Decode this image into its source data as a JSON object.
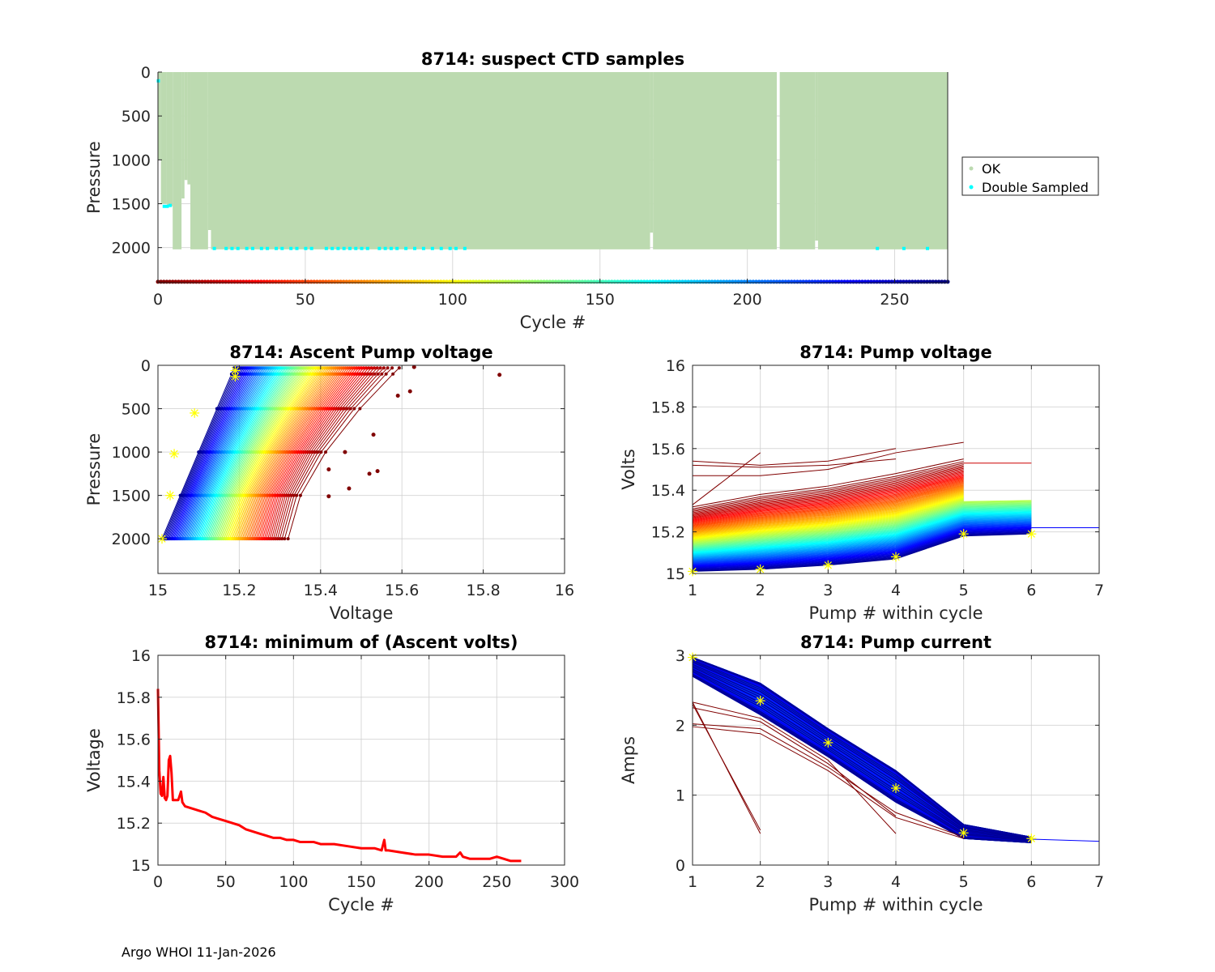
{
  "footer": "Argo WHOI 11-Jan-2026",
  "chart_data": [
    {
      "id": "suspect",
      "type": "scatter",
      "title": "8714: suspect CTD samples",
      "xlabel": "Cycle #",
      "ylabel": "Pressure",
      "xlim": [
        0,
        268
      ],
      "ylim": [
        0,
        2400
      ],
      "y_reversed": true,
      "xticks": [
        0,
        50,
        100,
        150,
        200,
        250
      ],
      "yticks": [
        0,
        500,
        1000,
        1500,
        2000
      ],
      "grid": true,
      "legend": {
        "placement": "outside-right",
        "entries": [
          {
            "label": "OK",
            "color": "#bcdab0"
          },
          {
            "label": "Double Sampled",
            "color": "#00ffff"
          }
        ]
      },
      "ok_region_color": "#bcdab0",
      "ok_profiles": [
        {
          "from": 0,
          "to": 1,
          "max_pressure": 1000
        },
        {
          "from": 1,
          "to": 3,
          "max_pressure": 1500
        },
        {
          "from": 3,
          "to": 5,
          "max_pressure": 1530
        },
        {
          "from": 5,
          "to": 8,
          "max_pressure": 2020
        },
        {
          "from": 8,
          "to": 9,
          "max_pressure": 1440
        },
        {
          "from": 9,
          "to": 10,
          "max_pressure": 1230
        },
        {
          "from": 10,
          "to": 11,
          "max_pressure": 1280
        },
        {
          "from": 11,
          "to": 17,
          "max_pressure": 2020
        },
        {
          "from": 17,
          "to": 18,
          "max_pressure": 1800
        },
        {
          "from": 18,
          "to": 167,
          "max_pressure": 2020
        },
        {
          "from": 167,
          "to": 168,
          "max_pressure": 1830
        },
        {
          "from": 168,
          "to": 210,
          "max_pressure": 2020
        },
        {
          "from": 211,
          "to": 223,
          "max_pressure": 2020
        },
        {
          "from": 223,
          "to": 224,
          "max_pressure": 1920
        },
        {
          "from": 224,
          "to": 268,
          "max_pressure": 2020
        }
      ],
      "double_sampled": [
        [
          0,
          100
        ],
        [
          2,
          1530
        ],
        [
          3,
          1530
        ],
        [
          4,
          1520
        ],
        [
          19,
          2010
        ],
        [
          23,
          2010
        ],
        [
          25,
          2010
        ],
        [
          27,
          2010
        ],
        [
          30,
          2010
        ],
        [
          32,
          2010
        ],
        [
          35,
          2010
        ],
        [
          37,
          2010
        ],
        [
          40,
          2010
        ],
        [
          42,
          2010
        ],
        [
          45,
          2010
        ],
        [
          47,
          2010
        ],
        [
          50,
          2010
        ],
        [
          52,
          2010
        ],
        [
          57,
          2010
        ],
        [
          59,
          2010
        ],
        [
          61,
          2010
        ],
        [
          63,
          2010
        ],
        [
          65,
          2010
        ],
        [
          67,
          2010
        ],
        [
          69,
          2010
        ],
        [
          71,
          2010
        ],
        [
          75,
          2010
        ],
        [
          77,
          2010
        ],
        [
          79,
          2010
        ],
        [
          81,
          2010
        ],
        [
          84,
          2010
        ],
        [
          87,
          2010
        ],
        [
          90,
          2010
        ],
        [
          93,
          2010
        ],
        [
          96,
          2010
        ],
        [
          99,
          2010
        ],
        [
          101,
          2010
        ],
        [
          104,
          2010
        ],
        [
          244,
          2010
        ],
        [
          253,
          2010
        ],
        [
          261,
          2010
        ]
      ],
      "cycle_colorbar": {
        "from": 0,
        "to": 268,
        "colormap": "jet-reversed",
        "at_pressure": 2390
      }
    },
    {
      "id": "ascent",
      "type": "line",
      "title": "8714: Ascent Pump voltage",
      "xlabel": "Voltage",
      "ylabel": "Pressure",
      "xlim": [
        15,
        16
      ],
      "ylim": [
        0,
        2400
      ],
      "y_reversed": true,
      "xticks": [
        15,
        15.2,
        15.4,
        15.6,
        15.8,
        16
      ],
      "yticks": [
        0,
        500,
        1000,
        1500,
        2000
      ],
      "grid": true,
      "description": "One line per cycle, colored by cycle (jet colormap, dark red = early, dark blue = late). Voltage rises as pressure decreases.",
      "series_envelope": {
        "late_cycle_at_2000": 15.01,
        "late_cycle_at_0": 15.19,
        "early_cycle_at_2000": 15.32,
        "early_cycle_at_0": 15.6
      },
      "outlier_points": [
        [
          15.84,
          110
        ],
        [
          15.63,
          20
        ],
        [
          15.62,
          300
        ],
        [
          15.59,
          350
        ],
        [
          15.53,
          800
        ],
        [
          15.52,
          1250
        ],
        [
          15.54,
          1220
        ],
        [
          15.47,
          1420
        ],
        [
          15.42,
          1510
        ],
        [
          15.42,
          1200
        ],
        [
          15.46,
          1000
        ]
      ],
      "latest_cycle_markers": [
        [
          15.19,
          60
        ],
        [
          15.19,
          130
        ],
        [
          15.09,
          550
        ],
        [
          15.04,
          1020
        ],
        [
          15.03,
          1500
        ],
        [
          15.01,
          2000
        ]
      ],
      "marker_color": "#ffff00"
    },
    {
      "id": "pumpvolt",
      "type": "line",
      "title": "8714: Pump voltage",
      "xlabel": "Pump # within cycle",
      "ylabel": "Volts",
      "xlim": [
        1,
        7
      ],
      "ylim": [
        15,
        16
      ],
      "xticks": [
        1,
        2,
        3,
        4,
        5,
        6,
        7
      ],
      "yticks": [
        15,
        15.2,
        15.4,
        15.6,
        15.8,
        16
      ],
      "grid": true,
      "description": "One line per cycle colored by cycle (jet colormap). Early cycles higher voltage.",
      "series_envelope": {
        "early": [
          15.32,
          15.38,
          15.42,
          15.48,
          15.55
        ],
        "late": [
          15.01,
          15.02,
          15.04,
          15.07,
          15.18,
          15.19
        ]
      },
      "latest_cycle_markers": [
        [
          1,
          15.01
        ],
        [
          2,
          15.02
        ],
        [
          3,
          15.04
        ],
        [
          4,
          15.08
        ],
        [
          5,
          15.19
        ],
        [
          6,
          15.19
        ]
      ],
      "marker_color": "#ffff00"
    },
    {
      "id": "minvolts",
      "type": "line",
      "title": "8714: minimum of (Ascent volts)",
      "xlabel": "Cycle #",
      "ylabel": "Voltage",
      "xlim": [
        0,
        300
      ],
      "ylim": [
        15,
        16
      ],
      "xticks": [
        0,
        50,
        100,
        150,
        200,
        250,
        300
      ],
      "yticks": [
        15,
        15.2,
        15.4,
        15.6,
        15.8,
        16
      ],
      "grid": true,
      "color": "#ff0000",
      "x": [
        0,
        1,
        2,
        3,
        4,
        5,
        6,
        7,
        8,
        9,
        10,
        11,
        12,
        15,
        17,
        18,
        19,
        20,
        25,
        30,
        35,
        40,
        45,
        50,
        55,
        60,
        65,
        70,
        75,
        80,
        85,
        90,
        95,
        100,
        105,
        110,
        115,
        120,
        130,
        140,
        150,
        160,
        165,
        167,
        168,
        170,
        180,
        190,
        200,
        210,
        220,
        223,
        225,
        230,
        240,
        245,
        250,
        255,
        260,
        265,
        268
      ],
      "values": [
        15.84,
        15.45,
        15.34,
        15.33,
        15.42,
        15.32,
        15.31,
        15.33,
        15.5,
        15.52,
        15.44,
        15.31,
        15.31,
        15.31,
        15.35,
        15.3,
        15.29,
        15.28,
        15.27,
        15.26,
        15.25,
        15.23,
        15.22,
        15.21,
        15.2,
        15.19,
        15.17,
        15.16,
        15.15,
        15.14,
        15.13,
        15.13,
        15.12,
        15.12,
        15.11,
        15.11,
        15.11,
        15.1,
        15.1,
        15.09,
        15.08,
        15.08,
        15.07,
        15.12,
        15.07,
        15.07,
        15.06,
        15.05,
        15.05,
        15.04,
        15.04,
        15.06,
        15.04,
        15.03,
        15.03,
        15.03,
        15.04,
        15.03,
        15.02,
        15.02,
        15.02
      ]
    },
    {
      "id": "pumpcurrent",
      "type": "line",
      "title": "8714: Pump current",
      "xlabel": "Pump # within cycle",
      "ylabel": "Amps",
      "xlim": [
        1,
        7
      ],
      "ylim": [
        0,
        3
      ],
      "xticks": [
        1,
        2,
        3,
        4,
        5,
        6,
        7
      ],
      "yticks": [
        0,
        1,
        2,
        3
      ],
      "grid": true,
      "description": "One line per cycle colored by cycle (jet colormap). Current declines from ~3 A at pump 1 to ~0.35 A at pump 6.",
      "series_envelope": {
        "upper": [
          2.97,
          2.6,
          1.95,
          1.35,
          0.58,
          0.4
        ],
        "lower": [
          2.7,
          2.15,
          1.55,
          0.9,
          0.38,
          0.32
        ]
      },
      "early_outliers": [
        [
          [
            1,
            2.33
          ],
          [
            2,
            0.45
          ]
        ],
        [
          [
            1,
            2.3
          ],
          [
            2,
            0.5
          ]
        ],
        [
          [
            1,
            2.33
          ],
          [
            2,
            2.1
          ],
          [
            3,
            1.5
          ],
          [
            4,
            0.45
          ]
        ],
        [
          [
            1,
            2.25
          ],
          [
            2,
            2.05
          ],
          [
            3,
            1.45
          ],
          [
            4,
            0.7
          ]
        ],
        [
          [
            1,
            2.02
          ],
          [
            2,
            1.95
          ],
          [
            3,
            1.4
          ],
          [
            4,
            0.75
          ],
          [
            5,
            0.4
          ]
        ],
        [
          [
            1,
            1.98
          ],
          [
            2,
            1.88
          ],
          [
            3,
            1.35
          ],
          [
            4,
            0.68
          ],
          [
            5,
            0.38
          ]
        ]
      ],
      "late_tail": [
        [
          6,
          0.37
        ],
        [
          7,
          0.34
        ]
      ],
      "latest_cycle_markers": [
        [
          1,
          2.97
        ],
        [
          2,
          2.35
        ],
        [
          3,
          1.75
        ],
        [
          4,
          1.1
        ],
        [
          5,
          0.46
        ],
        [
          6,
          0.38
        ]
      ],
      "marker_color": "#ffff00"
    }
  ]
}
